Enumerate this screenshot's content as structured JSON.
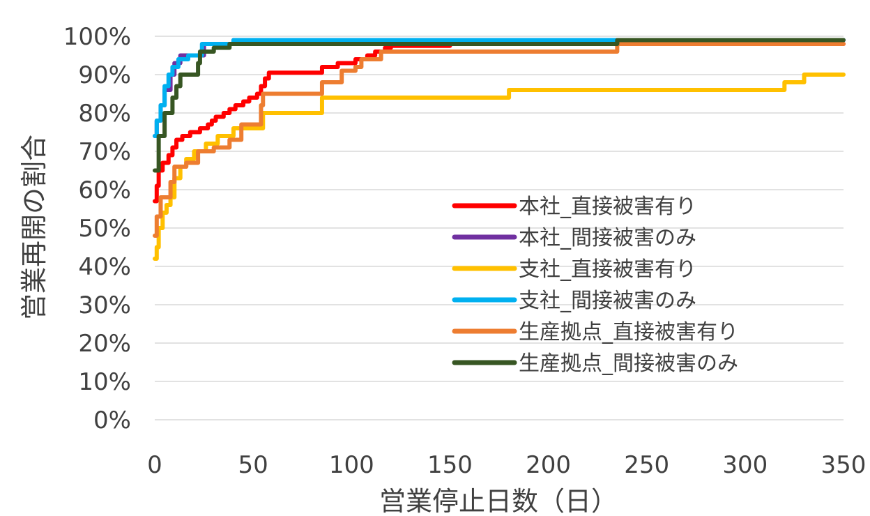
{
  "chart_data": {
    "type": "line",
    "title": "",
    "xlabel": "営業停止日数（日）",
    "ylabel": "営業再開の割合",
    "xlim": [
      0,
      350
    ],
    "ylim": [
      0,
      100
    ],
    "x_ticks": [
      0,
      50,
      100,
      150,
      200,
      250,
      300,
      350
    ],
    "x_tick_labels": [
      "0",
      "50",
      "100",
      "150",
      "200",
      "250",
      "300",
      "350"
    ],
    "y_ticks": [
      0,
      10,
      20,
      30,
      40,
      50,
      60,
      70,
      80,
      90,
      100
    ],
    "y_tick_labels": [
      "0%",
      "10%",
      "20%",
      "30%",
      "40%",
      "50%",
      "60%",
      "70%",
      "80%",
      "90%",
      "100%"
    ],
    "grid": true,
    "legend_position": "lower-right",
    "series": [
      {
        "name": "本社_直接被害有り",
        "color": "#ff0000",
        "step": true,
        "points": [
          [
            0,
            57
          ],
          [
            1,
            61
          ],
          [
            2,
            65
          ],
          [
            4,
            67
          ],
          [
            7,
            69
          ],
          [
            9,
            71
          ],
          [
            11,
            73
          ],
          [
            14,
            74
          ],
          [
            18,
            75
          ],
          [
            23,
            76
          ],
          [
            27,
            77
          ],
          [
            29,
            78
          ],
          [
            31,
            79
          ],
          [
            35,
            80
          ],
          [
            38,
            81
          ],
          [
            41,
            82
          ],
          [
            45,
            83
          ],
          [
            48,
            84
          ],
          [
            52,
            85
          ],
          [
            54,
            87
          ],
          [
            56,
            89
          ],
          [
            58,
            90.5
          ],
          [
            85,
            92
          ],
          [
            93,
            93
          ],
          [
            102,
            94
          ],
          [
            108,
            95
          ],
          [
            112,
            96
          ],
          [
            117,
            97
          ],
          [
            120,
            97.5
          ],
          [
            150,
            98
          ],
          [
            350,
            98
          ]
        ]
      },
      {
        "name": "本社_間接被害のみ",
        "color": "#7030a0",
        "step": true,
        "points": [
          [
            0,
            74
          ],
          [
            1,
            78
          ],
          [
            3,
            82
          ],
          [
            5,
            86
          ],
          [
            8,
            90
          ],
          [
            10,
            93
          ],
          [
            13,
            95
          ],
          [
            25,
            98
          ],
          [
            40,
            99
          ],
          [
            350,
            99
          ]
        ]
      },
      {
        "name": "支社_直接被害有り",
        "color": "#ffc000",
        "step": true,
        "points": [
          [
            0,
            42
          ],
          [
            1,
            45
          ],
          [
            2,
            50
          ],
          [
            4,
            54
          ],
          [
            6,
            56
          ],
          [
            8,
            58
          ],
          [
            10,
            63
          ],
          [
            13,
            66
          ],
          [
            16,
            68
          ],
          [
            20,
            70
          ],
          [
            26,
            72
          ],
          [
            32,
            74
          ],
          [
            40,
            76
          ],
          [
            55,
            80
          ],
          [
            85,
            84
          ],
          [
            180,
            86
          ],
          [
            320,
            88
          ],
          [
            330,
            90
          ],
          [
            350,
            90
          ]
        ]
      },
      {
        "name": "支社_間接被害のみ",
        "color": "#00b0f0",
        "step": true,
        "points": [
          [
            0,
            74
          ],
          [
            1,
            78
          ],
          [
            3,
            82
          ],
          [
            5,
            87
          ],
          [
            7,
            90
          ],
          [
            9,
            92
          ],
          [
            12,
            94
          ],
          [
            17,
            95
          ],
          [
            24,
            98
          ],
          [
            40,
            99
          ],
          [
            350,
            99
          ]
        ]
      },
      {
        "name": "生産拠点_直接被害有り",
        "color": "#ed7d31",
        "step": true,
        "points": [
          [
            0,
            48
          ],
          [
            1,
            53
          ],
          [
            3,
            58
          ],
          [
            8,
            62
          ],
          [
            10,
            66
          ],
          [
            16,
            67
          ],
          [
            22,
            70
          ],
          [
            30,
            71
          ],
          [
            38,
            73
          ],
          [
            44,
            77
          ],
          [
            54,
            82
          ],
          [
            55,
            85
          ],
          [
            85,
            88
          ],
          [
            95,
            91
          ],
          [
            102,
            92
          ],
          [
            105,
            94
          ],
          [
            115,
            96
          ],
          [
            235,
            98
          ],
          [
            350,
            98
          ]
        ]
      },
      {
        "name": "生産拠点_間接被害のみ",
        "color": "#375623",
        "step": true,
        "points": [
          [
            0,
            65
          ],
          [
            2,
            74
          ],
          [
            5,
            80
          ],
          [
            9,
            84
          ],
          [
            11,
            87
          ],
          [
            13,
            90
          ],
          [
            22,
            93
          ],
          [
            23,
            96
          ],
          [
            30,
            97
          ],
          [
            38,
            98
          ],
          [
            235,
            99
          ],
          [
            350,
            99
          ]
        ]
      }
    ]
  }
}
